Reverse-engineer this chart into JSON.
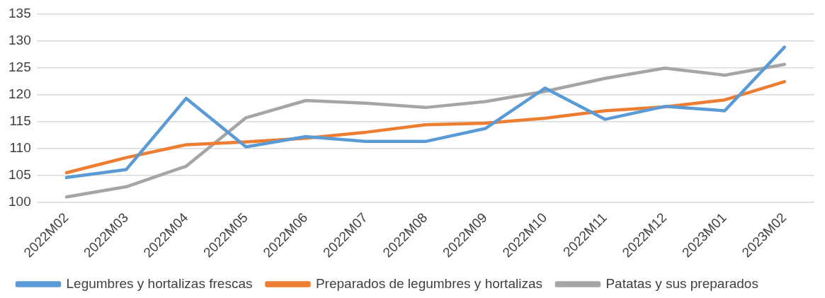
{
  "chart_data": {
    "type": "line",
    "categories": [
      "2022M02",
      "2022M03",
      "2022M04",
      "2022M05",
      "2022M06",
      "2022M07",
      "2022M08",
      "2022M09",
      "2022M10",
      "2022M11",
      "2022M12",
      "2023M01",
      "2023M02"
    ],
    "series": [
      {
        "name": "Legumbres y hortalizas frescas",
        "color": "#5b9bd5",
        "values": [
          104.6,
          106.1,
          119.3,
          110.3,
          112.2,
          111.3,
          111.3,
          113.7,
          121.2,
          115.4,
          117.8,
          117.0,
          128.8
        ]
      },
      {
        "name": "Preparados de legumbres y hortalizas",
        "color": "#ed7d31",
        "values": [
          105.5,
          108.3,
          110.7,
          111.2,
          111.9,
          113.0,
          114.4,
          114.7,
          115.6,
          117.0,
          117.7,
          119.0,
          122.4
        ]
      },
      {
        "name": "Patatas y sus preparados",
        "color": "#a5a5a5",
        "values": [
          101.0,
          102.9,
          106.7,
          115.7,
          118.9,
          118.4,
          117.6,
          118.7,
          120.6,
          123.0,
          124.9,
          123.6,
          125.6
        ]
      }
    ],
    "ylim": [
      100,
      135
    ],
    "yticks": [
      100,
      105,
      110,
      115,
      120,
      125,
      130,
      135
    ],
    "grid": "y",
    "legend": "bottom",
    "marker": "none",
    "line_style": "solid"
  }
}
